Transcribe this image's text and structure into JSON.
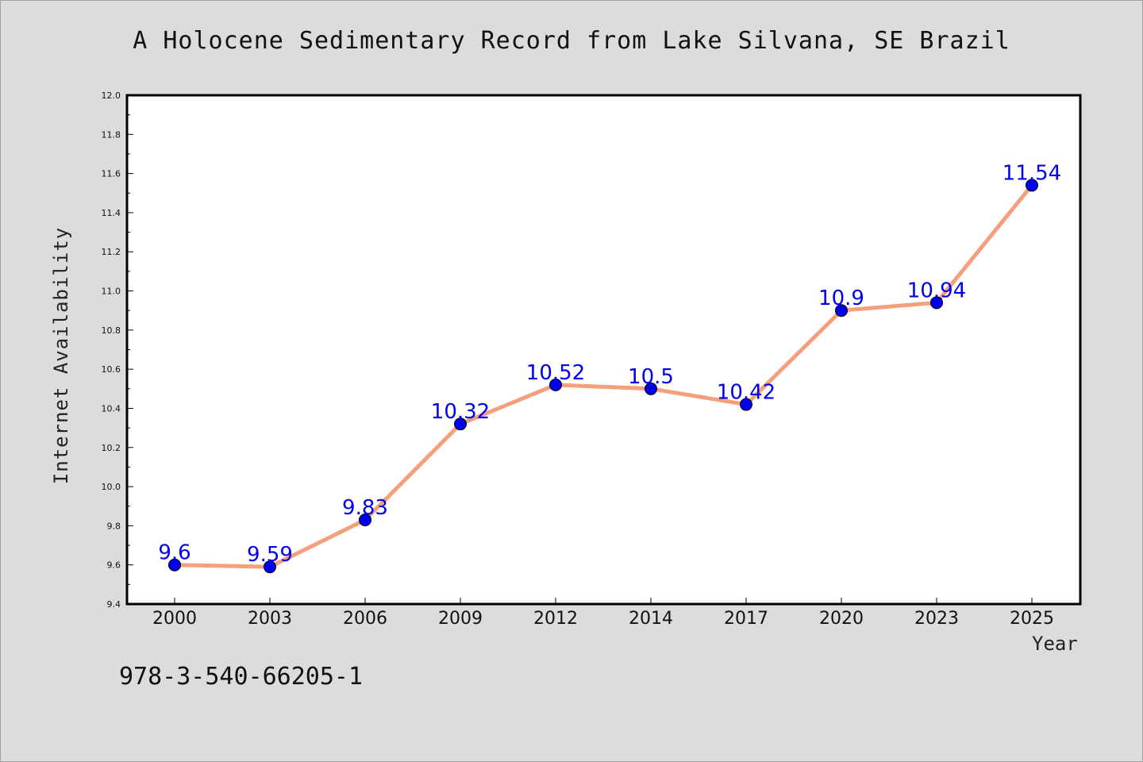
{
  "chart_data": {
    "type": "line",
    "title": "A Holocene Sedimentary Record from Lake Silvana, SE Brazil",
    "xlabel": "Year",
    "ylabel": "Internet Availability",
    "categories": [
      "2000",
      "2003",
      "2006",
      "2009",
      "2012",
      "2014",
      "2017",
      "2020",
      "2023",
      "2025"
    ],
    "series": [
      {
        "values": [
          9.6,
          9.59,
          9.83,
          10.32,
          10.52,
          10.5,
          10.42,
          10.9,
          10.94,
          11.54
        ],
        "labels": [
          "9.6",
          "9.59",
          "9.83",
          "10.32",
          "10.52",
          "10.5",
          "10.42",
          "10.9",
          "10.94",
          "11.54"
        ]
      }
    ],
    "ylim": [
      9.4,
      12.0
    ],
    "yticks": [
      "9.4",
      "9.6",
      "9.8",
      "10.0",
      "10.2",
      "10.4",
      "10.6",
      "10.8",
      "11.0",
      "11.2",
      "11.4",
      "11.6",
      "11.8",
      "12.0"
    ],
    "grid": false,
    "colors": {
      "line": "#f4a07c",
      "marker": "#0000ee",
      "data_label": "#0000ee",
      "plot_bg": "#ffffff",
      "page_bg": "#dcdcdc"
    }
  },
  "footer": {
    "isbn": "978-3-540-66205-1"
  }
}
